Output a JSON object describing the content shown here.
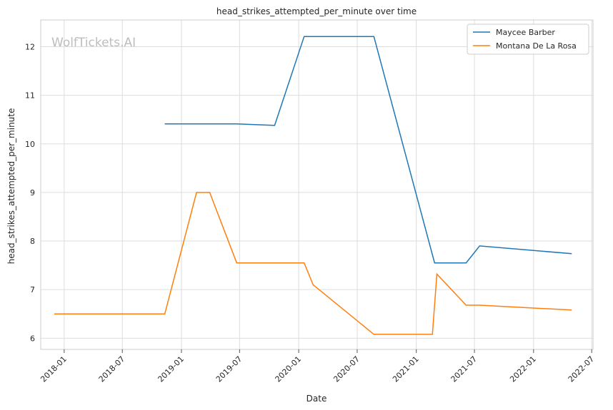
{
  "chart_data": {
    "type": "line",
    "title": "head_strikes_attempted_per_minute over time",
    "xlabel": "Date",
    "ylabel": "head_strikes_attempted_per_minute",
    "watermark": "WolfTickets.AI",
    "xlim": [
      "2017-10-20",
      "2022-07-05"
    ],
    "ylim": [
      5.77,
      12.55
    ],
    "x_ticks": [
      "2018-01",
      "2018-07",
      "2019-01",
      "2019-07",
      "2020-01",
      "2020-07",
      "2021-01",
      "2021-07",
      "2022-01",
      "2022-07"
    ],
    "y_ticks": [
      6,
      7,
      8,
      9,
      10,
      11,
      12
    ],
    "grid": true,
    "legend_position": "top-right",
    "series": [
      {
        "name": "Maycee Barber",
        "color": "#1f77b4",
        "points": [
          [
            "2018-11-10",
            10.41
          ],
          [
            "2019-06-22",
            10.41
          ],
          [
            "2019-10-18",
            10.38
          ],
          [
            "2020-01-18",
            12.21
          ],
          [
            "2020-08-22",
            12.21
          ],
          [
            "2021-02-27",
            7.55
          ],
          [
            "2021-06-05",
            7.55
          ],
          [
            "2021-07-17",
            7.9
          ],
          [
            "2022-04-30",
            7.74
          ]
        ]
      },
      {
        "name": "Montana De La Rosa",
        "color": "#ff7f0e",
        "points": [
          [
            "2017-12-01",
            6.5
          ],
          [
            "2018-11-10",
            6.5
          ],
          [
            "2019-02-17",
            9.0
          ],
          [
            "2019-03-30",
            9.0
          ],
          [
            "2019-06-22",
            7.55
          ],
          [
            "2020-01-18",
            7.55
          ],
          [
            "2020-02-15",
            7.1
          ],
          [
            "2020-08-22",
            6.08
          ],
          [
            "2021-02-20",
            6.08
          ],
          [
            "2021-03-06",
            7.32
          ],
          [
            "2021-06-05",
            6.68
          ],
          [
            "2021-07-17",
            6.68
          ],
          [
            "2022-04-30",
            6.58
          ]
        ]
      }
    ]
  }
}
